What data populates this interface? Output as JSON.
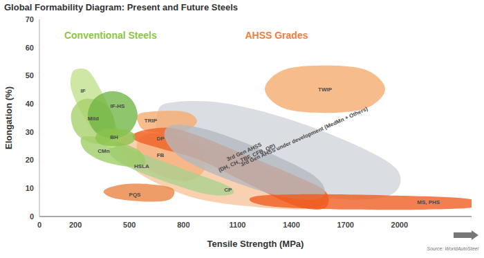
{
  "chart_data": {
    "type": "region",
    "title": "Global Formability Diagram: Present and Future Steels",
    "xlabel": "Tensile Strength (MPa)",
    "ylabel": "Elongation (%)",
    "xlim": [
      0,
      2400
    ],
    "xticks": [
      0,
      200,
      500,
      800,
      1100,
      1400,
      1700,
      2000
    ],
    "ylim": [
      0,
      70
    ],
    "yticks": [
      0,
      10,
      20,
      30,
      40,
      50,
      60,
      70
    ],
    "grid": false,
    "source": "Source: WorldAutoSteel",
    "annotations": [
      {
        "text": "Conventional Steels",
        "x": 395,
        "y": 64,
        "color": "#8dc63f"
      },
      {
        "text": "AHSS Grades",
        "x": 1317,
        "y": 64,
        "color": "#f47c3c"
      }
    ],
    "series": [
      {
        "name": "3rd Gen AHSS under development (MedMn + Others)",
        "color": "#cfd5da",
        "x": [
          722,
          1010,
          1394,
          1777,
          1989,
          1970,
          1777,
          1432,
          1086,
          818,
          664,
          656
        ],
        "y": [
          40.4,
          40.4,
          34.4,
          24.8,
          16.4,
          8.4,
          6,
          7.9,
          14,
          21.2,
          29.6,
          36.8
        ],
        "label_x": 1470,
        "label_y": 28.4
      },
      {
        "name": "CP",
        "color": "#f8c49a",
        "x": [
          453,
          664,
          933,
          1240,
          1509,
          1586,
          1470,
          1163,
          856,
          587,
          472
        ],
        "y": [
          28.4,
          29.6,
          24.8,
          17.6,
          10.8,
          5.5,
          2.6,
          3.6,
          6.7,
          14,
          21.2
        ],
        "label_x": 1048,
        "label_y": 9.6
      },
      {
        "name": "FB",
        "color": "#f6b07e",
        "x": [
          568,
          760,
          894,
          914,
          818,
          645,
          549
        ],
        "y": [
          28.4,
          29.1,
          23.6,
          16.4,
          12.7,
          15.2,
          21.2
        ],
        "label_x": 672,
        "label_y": 21.9
      },
      {
        "name": "TRIP",
        "color": "#f7a96c",
        "x": [
          568,
          799,
          875,
          799,
          607,
          549
        ],
        "y": [
          36.8,
          37.3,
          33.9,
          30.3,
          30.1,
          33.2
        ],
        "label_x": 618,
        "label_y": 34.2
      },
      {
        "name": "PQS",
        "color": "#e9823f",
        "x": [
          357,
          453,
          607,
          741,
          722,
          587,
          415
        ],
        "y": [
          9.1,
          11.3,
          11.5,
          9.9,
          6,
          5.3,
          6.5
        ],
        "label_x": 530,
        "label_y": 7.9
      },
      {
        "name": "DP",
        "color": "#ef5f22",
        "x": [
          549,
          722,
          894,
          1125,
          1394,
          1586,
          1586,
          1432,
          1163,
          894,
          664,
          530
        ],
        "y": [
          30.1,
          31.5,
          28.4,
          22.4,
          15.2,
          9.1,
          3.1,
          3.6,
          11.5,
          20,
          24.3,
          27.2
        ],
        "label_x": 672,
        "label_y": 27.7
      },
      {
        "name": "3rd Gen AHSS\n(DH, CH, TBF, CFB, QP)",
        "color": "#b3b9bf",
        "x": [
          741,
          933,
          1240,
          1509,
          1586,
          1528,
          1317,
          1010,
          779,
          695
        ],
        "y": [
          32.5,
          30.8,
          23.6,
          15.2,
          9.1,
          6,
          7.5,
          14,
          21.2,
          28.4
        ],
        "label_x": 1144,
        "label_y": 21.9
      },
      {
        "name": "MS, PHS",
        "color": "#f05a1e",
        "x": [
          1202,
          1509,
          1931,
          2315,
          2449,
          2392,
          1931,
          1394,
          1194
        ],
        "y": [
          7.2,
          7.9,
          7.5,
          6.7,
          5.1,
          3.1,
          2.4,
          3.1,
          4.8
        ],
        "label_x": 2161,
        "label_y": 5.1
      },
      {
        "name": "TWIP",
        "color": "#f4a96a",
        "x": [
          1586,
          1816,
          1920,
          1816,
          1586,
          1355,
          1252,
          1355
        ],
        "y": [
          53.6,
          52,
          45.2,
          38.5,
          36.8,
          38.5,
          45.2,
          52
        ],
        "label_x": 1586,
        "label_y": 45.2
      },
      {
        "name": "HSLA",
        "color": "#a9d18e",
        "x": [
          415,
          587,
          818,
          1048,
          1067,
          933,
          703,
          491,
          395
        ],
        "y": [
          26,
          21.9,
          16.4,
          10.8,
          7.9,
          7.9,
          12.3,
          17.6,
          21.9
        ],
        "label_x": 568,
        "label_y": 18
      },
      {
        "name": "CMn",
        "color": "#9ccc65",
        "x": [
          242,
          395,
          549,
          587,
          511,
          357,
          250
        ],
        "y": [
          28.4,
          27.2,
          23.6,
          18.8,
          17.6,
          19.5,
          23.6
        ],
        "label_x": 357,
        "label_y": 23.3
      },
      {
        "name": "IF",
        "color": "#c2e08a",
        "x": [
          211,
          272,
          338,
          415,
          441,
          395,
          319,
          234,
          177,
          180
        ],
        "y": [
          52.4,
          51.7,
          45.2,
          34.4,
          27.2,
          24.3,
          29.1,
          36.8,
          45.2,
          50.7
        ],
        "label_x": 242,
        "label_y": 44.7
      },
      {
        "name": "Mild",
        "color": "#a6cf6a",
        "x": [
          242,
          357,
          415,
          395,
          299,
          203,
          177
        ],
        "y": [
          41.6,
          40.4,
          34.4,
          27.2,
          26,
          29.6,
          36.8
        ],
        "label_x": 299,
        "label_y": 34.9
      },
      {
        "name": "IF-HS",
        "color": "#6fb544",
        "x": [
          407,
          503,
          545,
          503,
          407,
          311,
          269,
          311
        ],
        "y": [
          44.5,
          42.1,
          36.1,
          30.1,
          27.7,
          30.1,
          36.1,
          42.1
        ],
        "label_x": 434,
        "label_y": 39.2
      },
      {
        "name": "BH",
        "color": "#8bc34a",
        "x": [
          357,
          491,
          534,
          491,
          357,
          311
        ],
        "y": [
          31,
          30.6,
          28.1,
          25.5,
          25.3,
          27.9
        ],
        "label_x": 415,
        "label_y": 28.1
      }
    ]
  }
}
